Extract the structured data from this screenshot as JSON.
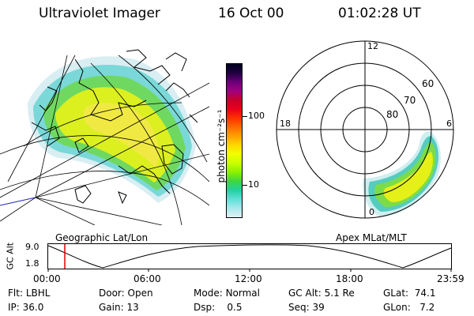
{
  "header": {
    "instrument": "Ultraviolet Imager",
    "date": "16 Oct 00",
    "time": "01:02:28 UT"
  },
  "colorbar": {
    "unit_label": "photon cm⁻²s⁻¹",
    "ticks": [
      "100",
      "10"
    ],
    "colors": [
      "#000020",
      "#200040",
      "#6a007a",
      "#a00080",
      "#c8002a",
      "#e8001a",
      "#ff3000",
      "#ff6a00",
      "#ffa000",
      "#ffd800",
      "#f0ff00",
      "#c8ff00",
      "#8cf000",
      "#3cd840",
      "#20d0a0",
      "#60e0d8",
      "#a8e8ec",
      "#e0f0f4"
    ]
  },
  "left_panel": {
    "caption": "Geographic Lat/Lon"
  },
  "right_panel": {
    "caption": "Apex MLat/MLT",
    "mlt_labels": {
      "top": "12",
      "left": "18",
      "right": "6",
      "bottom": "0"
    },
    "lat_labels": [
      "60",
      "70",
      "80"
    ]
  },
  "altitude_plot": {
    "ylabel": "GC Alt",
    "yticks": [
      "9.0",
      "1.8"
    ],
    "xticks": [
      "00:00",
      "06:00",
      "12:00",
      "18:00",
      "23:59"
    ],
    "marker_color": "#e00000"
  },
  "footer": {
    "row1": [
      {
        "label": "Flt:",
        "value": "LBHL"
      },
      {
        "label": "Door:",
        "value": "Open"
      },
      {
        "label": "Mode:",
        "value": "Normal"
      },
      {
        "label": "GC Alt:",
        "value": "5.1 Re"
      },
      {
        "label": "GLat:",
        "value": "74.1"
      }
    ],
    "row2": [
      {
        "label": "IP:",
        "value": "36.0"
      },
      {
        "label": "Gain:",
        "value": "13"
      },
      {
        "label": "Dsp:",
        "value": "0.5"
      },
      {
        "label": "Seq:",
        "value": "39"
      },
      {
        "label": "GLon:",
        "value": "7.2"
      }
    ]
  }
}
